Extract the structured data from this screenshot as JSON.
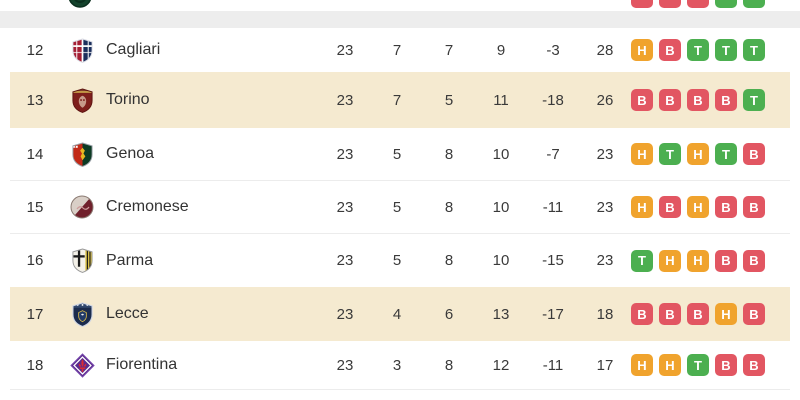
{
  "colors": {
    "win": "#4CAF50",
    "draw": "#F0A32D",
    "loss": "#E25662",
    "highlight_row": "#F5EAD0",
    "section_gap": "#EDEDED",
    "divider": "#ECECEC"
  },
  "table": {
    "partial_top_row": {
      "crest": "sassuolo",
      "form_results": [
        "loss",
        "loss",
        "loss",
        "win",
        "win"
      ]
    },
    "rows": [
      {
        "pos": "12",
        "team": "Cagliari",
        "crest": "cagliari",
        "played": "23",
        "wins": "7",
        "draws": "7",
        "losses": "9",
        "gd": "-3",
        "pts": "28",
        "highlight": false,
        "form": [
          {
            "letter": "H",
            "result": "draw"
          },
          {
            "letter": "B",
            "result": "loss"
          },
          {
            "letter": "T",
            "result": "win"
          },
          {
            "letter": "T",
            "result": "win"
          },
          {
            "letter": "T",
            "result": "win"
          }
        ]
      },
      {
        "pos": "13",
        "team": "Torino",
        "crest": "torino",
        "played": "23",
        "wins": "7",
        "draws": "5",
        "losses": "11",
        "gd": "-18",
        "pts": "26",
        "highlight": true,
        "form": [
          {
            "letter": "B",
            "result": "loss"
          },
          {
            "letter": "B",
            "result": "loss"
          },
          {
            "letter": "B",
            "result": "loss"
          },
          {
            "letter": "B",
            "result": "loss"
          },
          {
            "letter": "T",
            "result": "win"
          }
        ]
      },
      {
        "pos": "14",
        "team": "Genoa",
        "crest": "genoa",
        "played": "23",
        "wins": "5",
        "draws": "8",
        "losses": "10",
        "gd": "-7",
        "pts": "23",
        "highlight": false,
        "form": [
          {
            "letter": "H",
            "result": "draw"
          },
          {
            "letter": "T",
            "result": "win"
          },
          {
            "letter": "H",
            "result": "draw"
          },
          {
            "letter": "T",
            "result": "win"
          },
          {
            "letter": "B",
            "result": "loss"
          }
        ]
      },
      {
        "pos": "15",
        "team": "Cremonese",
        "crest": "cremonese",
        "played": "23",
        "wins": "5",
        "draws": "8",
        "losses": "10",
        "gd": "-11",
        "pts": "23",
        "highlight": false,
        "form": [
          {
            "letter": "H",
            "result": "draw"
          },
          {
            "letter": "B",
            "result": "loss"
          },
          {
            "letter": "H",
            "result": "draw"
          },
          {
            "letter": "B",
            "result": "loss"
          },
          {
            "letter": "B",
            "result": "loss"
          }
        ]
      },
      {
        "pos": "16",
        "team": "Parma",
        "crest": "parma",
        "played": "23",
        "wins": "5",
        "draws": "8",
        "losses": "10",
        "gd": "-15",
        "pts": "23",
        "highlight": false,
        "form": [
          {
            "letter": "T",
            "result": "win"
          },
          {
            "letter": "H",
            "result": "draw"
          },
          {
            "letter": "H",
            "result": "draw"
          },
          {
            "letter": "B",
            "result": "loss"
          },
          {
            "letter": "B",
            "result": "loss"
          }
        ]
      },
      {
        "pos": "17",
        "team": "Lecce",
        "crest": "lecce",
        "played": "23",
        "wins": "4",
        "draws": "6",
        "losses": "13",
        "gd": "-17",
        "pts": "18",
        "highlight": true,
        "form": [
          {
            "letter": "B",
            "result": "loss"
          },
          {
            "letter": "B",
            "result": "loss"
          },
          {
            "letter": "B",
            "result": "loss"
          },
          {
            "letter": "H",
            "result": "draw"
          },
          {
            "letter": "B",
            "result": "loss"
          }
        ]
      },
      {
        "pos": "18",
        "team": "Fiorentina",
        "crest": "fiorentina",
        "played": "23",
        "wins": "3",
        "draws": "8",
        "losses": "12",
        "gd": "-11",
        "pts": "17",
        "highlight": false,
        "form": [
          {
            "letter": "H",
            "result": "draw"
          },
          {
            "letter": "H",
            "result": "draw"
          },
          {
            "letter": "T",
            "result": "win"
          },
          {
            "letter": "B",
            "result": "loss"
          },
          {
            "letter": "B",
            "result": "loss"
          }
        ]
      }
    ]
  }
}
